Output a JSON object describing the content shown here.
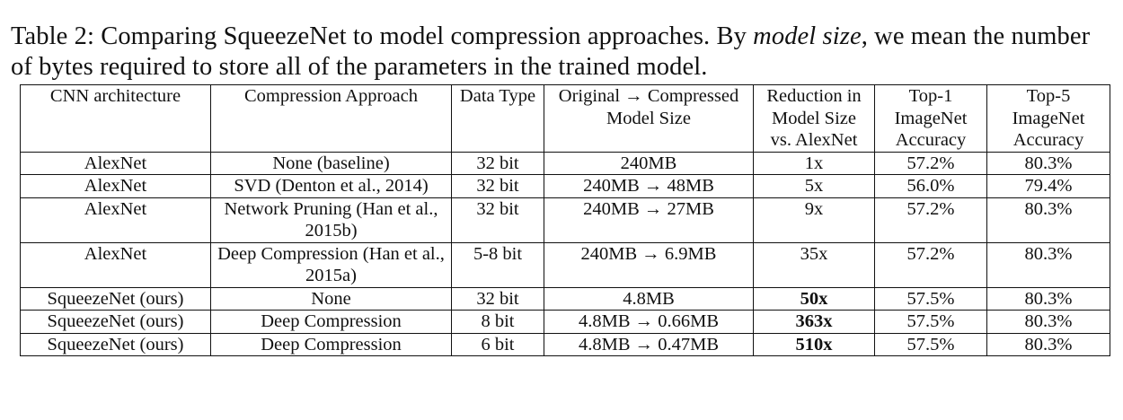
{
  "caption": {
    "label": "Table 2:",
    "text_before_italic": "Comparing SqueezeNet to model compression approaches. By",
    "italic": "model size",
    "text_after_italic": ", we mean the number of bytes required to store all of the parameters in the trained model."
  },
  "table": {
    "headers": [
      "CNN architecture",
      "Compression Approach",
      "Data Type",
      "Original → Compressed Model Size",
      "Reduction in Model Size vs. AlexNet",
      "Top-1 ImageNet Accuracy",
      "Top-5 ImageNet Accuracy"
    ],
    "rows": [
      [
        "AlexNet",
        "None (baseline)",
        "32 bit",
        "240MB",
        "1x",
        "57.2%",
        "80.3%"
      ],
      [
        "AlexNet",
        "SVD (Denton et al., 2014)",
        "32 bit",
        "240MB → 48MB",
        "5x",
        "56.0%",
        "79.4%"
      ],
      [
        "AlexNet",
        "Network Pruning (Han et al., 2015b)",
        "32 bit",
        "240MB → 27MB",
        "9x",
        "57.2%",
        "80.3%"
      ],
      [
        "AlexNet",
        "Deep Compression (Han et al., 2015a)",
        "5-8 bit",
        "240MB → 6.9MB",
        "35x",
        "57.2%",
        "80.3%"
      ],
      [
        "SqueezeNet (ours)",
        "None",
        "32 bit",
        "4.8MB",
        "50x",
        "57.5%",
        "80.3%"
      ],
      [
        "SqueezeNet (ours)",
        "Deep Compression",
        "8 bit",
        "4.8MB → 0.66MB",
        "363x",
        "57.5%",
        "80.3%"
      ],
      [
        "SqueezeNet (ours)",
        "Deep Compression",
        "6 bit",
        "4.8MB → 0.47MB",
        "510x",
        "57.5%",
        "80.3%"
      ]
    ]
  }
}
